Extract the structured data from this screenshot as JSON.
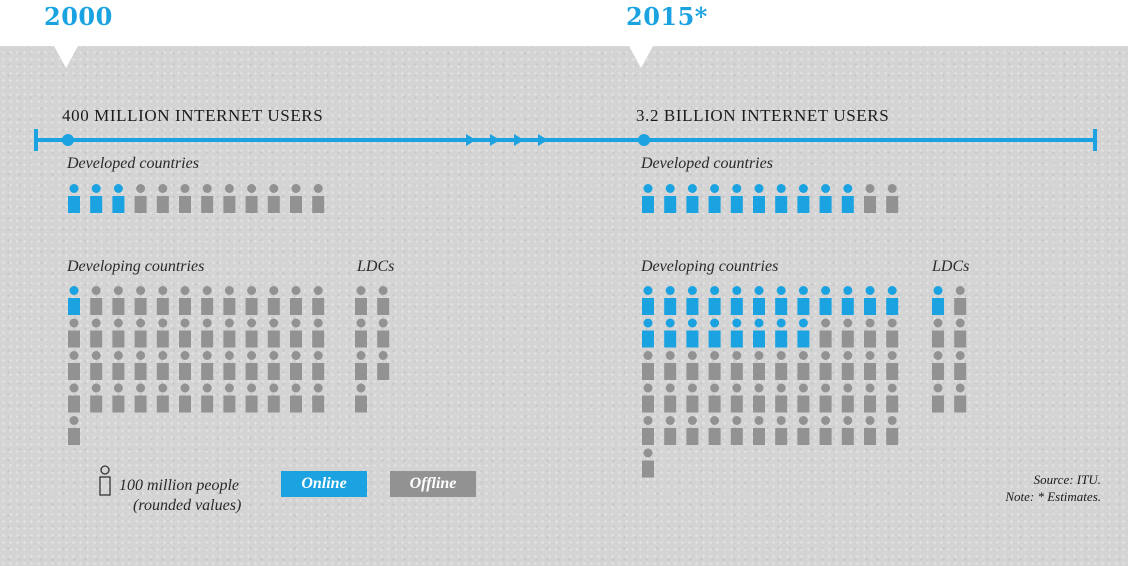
{
  "chart_data": {
    "type": "pictogram",
    "colors": {
      "online": "#1aa3e0",
      "offline": "#929292",
      "timeline": "#1aa3e0"
    },
    "panels": [
      {
        "year": "2000",
        "headline": "400 MILLION INTERNET USERS",
        "groups": [
          {
            "label": "Developed countries",
            "online": 3,
            "total": 12
          },
          {
            "label": "Developing countries",
            "online": 1,
            "total": 49
          },
          {
            "label": "LDCs",
            "online": 0,
            "total": 7
          }
        ]
      },
      {
        "year": "2015*",
        "headline": "3.2 BILLION INTERNET USERS",
        "groups": [
          {
            "label": "Developed countries",
            "online": 10,
            "total": 12
          },
          {
            "label": "Developing countries",
            "online": 20,
            "total": 61
          },
          {
            "label": "LDCs",
            "online": 1,
            "total": 8
          }
        ]
      }
    ]
  },
  "legend": {
    "unit_line1": "100 million people",
    "unit_line2": "(rounded values)",
    "online": "Online",
    "offline": "Offline",
    "icon": "person-outline-icon"
  },
  "footer": {
    "source": "Source: ITU.",
    "note": "Note: * Estimates."
  }
}
